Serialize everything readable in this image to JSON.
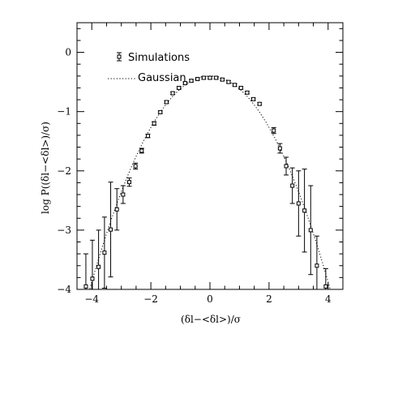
{
  "chart_data": {
    "type": "scatter",
    "xlabel": "(δl−<δl>)/σ",
    "ylabel": "log P((δl−<δl>)/σ)",
    "xlim": [
      -4.5,
      4.5
    ],
    "ylim": [
      -4,
      0.5
    ],
    "x_ticks": [
      -4,
      -2,
      0,
      2,
      4
    ],
    "y_ticks": [
      0,
      -1,
      -2,
      -3,
      -4
    ],
    "x_tick_labels": [
      "−4",
      "−2",
      "0",
      "2",
      "4"
    ],
    "y_tick_labels": [
      "0",
      "−1",
      "−2",
      "−3",
      "−4"
    ],
    "legend": {
      "position": "top-left",
      "entries": [
        "Simulations",
        "Gaussian"
      ]
    },
    "series": [
      {
        "name": "Simulations",
        "style": "open-square markers with error bars",
        "points": [
          {
            "x": -4.2,
            "y": -3.95,
            "err": 0.55
          },
          {
            "x": -3.98,
            "y": -3.82,
            "err": 0.65
          },
          {
            "x": -3.77,
            "y": -3.62,
            "err": 0.62
          },
          {
            "x": -3.57,
            "y": -3.38,
            "err": 0.6
          },
          {
            "x": -3.36,
            "y": -2.99,
            "err": 0.8
          },
          {
            "x": -3.15,
            "y": -2.65,
            "err": 0.35
          },
          {
            "x": -2.94,
            "y": -2.4,
            "err": 0.15
          },
          {
            "x": -2.73,
            "y": -2.19,
            "err": 0.07
          },
          {
            "x": -2.52,
            "y": -1.92,
            "err": 0.05
          },
          {
            "x": -2.31,
            "y": -1.66,
            "err": 0.04
          },
          {
            "x": -2.1,
            "y": -1.41,
            "err": 0.03
          },
          {
            "x": -1.89,
            "y": -1.2,
            "err": 0.03
          },
          {
            "x": -1.68,
            "y": -1.01,
            "err": 0.02
          },
          {
            "x": -1.47,
            "y": -0.84,
            "err": 0.02
          },
          {
            "x": -1.26,
            "y": -0.69,
            "err": 0.02
          },
          {
            "x": -1.05,
            "y": -0.6,
            "err": 0.02
          },
          {
            "x": -0.84,
            "y": -0.52,
            "err": 0.02
          },
          {
            "x": -0.63,
            "y": -0.48,
            "err": 0.02
          },
          {
            "x": -0.42,
            "y": -0.45,
            "err": 0.02
          },
          {
            "x": -0.21,
            "y": -0.43,
            "err": 0.02
          },
          {
            "x": 0.0,
            "y": -0.43,
            "err": 0.02
          },
          {
            "x": 0.21,
            "y": -0.43,
            "err": 0.02
          },
          {
            "x": 0.42,
            "y": -0.46,
            "err": 0.02
          },
          {
            "x": 0.63,
            "y": -0.5,
            "err": 0.02
          },
          {
            "x": 0.84,
            "y": -0.55,
            "err": 0.02
          },
          {
            "x": 1.05,
            "y": -0.6,
            "err": 0.02
          },
          {
            "x": 1.26,
            "y": -0.68,
            "err": 0.02
          },
          {
            "x": 1.47,
            "y": -0.79,
            "err": 0.02
          },
          {
            "x": 1.68,
            "y": -0.87,
            "err": 0.02
          },
          {
            "x": 2.16,
            "y": -1.32,
            "err": 0.05
          },
          {
            "x": 2.37,
            "y": -1.62,
            "err": 0.08
          },
          {
            "x": 2.58,
            "y": -1.92,
            "err": 0.15
          },
          {
            "x": 2.79,
            "y": -2.25,
            "err": 0.3
          },
          {
            "x": 3.0,
            "y": -2.55,
            "err": 0.55
          },
          {
            "x": 3.2,
            "y": -2.67,
            "err": 0.7
          },
          {
            "x": 3.41,
            "y": -3.0,
            "err": 0.75
          },
          {
            "x": 3.62,
            "y": -3.6,
            "err": 0.5
          },
          {
            "x": 3.92,
            "y": -3.95,
            "err": 0.3
          }
        ]
      },
      {
        "name": "Gaussian",
        "style": "dotted line",
        "function": "log10 of a unit normal density: y = log10(1/sqrt(2π)) − x²/(2·ln10)"
      }
    ]
  }
}
